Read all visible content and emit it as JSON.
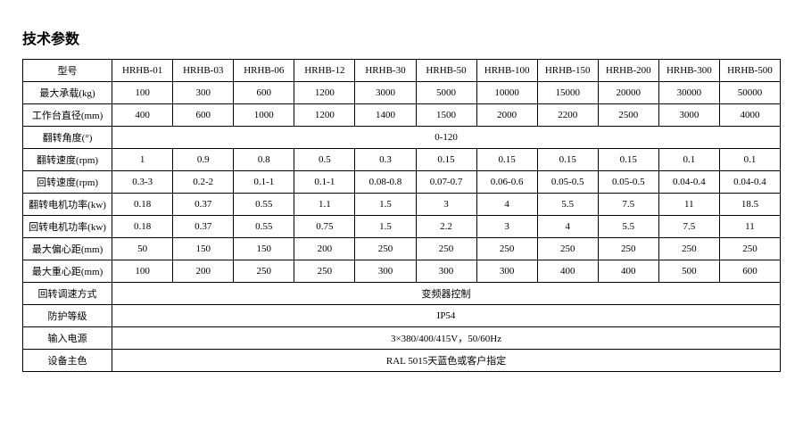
{
  "title": "技术参数",
  "table": {
    "header_label": "型号",
    "models": [
      "HRHB-01",
      "HRHB-03",
      "HRHB-06",
      "HRHB-12",
      "HRHB-30",
      "HRHB-50",
      "HRHB-100",
      "HRHB-150",
      "HRHB-200",
      "HRHB-300",
      "HRHB-500"
    ],
    "rows": [
      {
        "label": "最大承载(kg)",
        "cells": [
          "100",
          "300",
          "600",
          "1200",
          "3000",
          "5000",
          "10000",
          "15000",
          "20000",
          "30000",
          "50000"
        ]
      },
      {
        "label": "工作台直径(mm)",
        "cells": [
          "400",
          "600",
          "1000",
          "1200",
          "1400",
          "1500",
          "2000",
          "2200",
          "2500",
          "3000",
          "4000"
        ]
      },
      {
        "label": "翻转角度(°)",
        "span": "0-120"
      },
      {
        "label": "翻转速度(rpm)",
        "cells": [
          "1",
          "0.9",
          "0.8",
          "0.5",
          "0.3",
          "0.15",
          "0.15",
          "0.15",
          "0.15",
          "0.1",
          "0.1"
        ]
      },
      {
        "label": "回转速度(rpm)",
        "cells": [
          "0.3-3",
          "0.2-2",
          "0.1-1",
          "0.1-1",
          "0.08-0.8",
          "0.07-0.7",
          "0.06-0.6",
          "0.05-0.5",
          "0.05-0.5",
          "0.04-0.4",
          "0.04-0.4"
        ]
      },
      {
        "label": "翻转电机功率(kw)",
        "cells": [
          "0.18",
          "0.37",
          "0.55",
          "1.1",
          "1.5",
          "3",
          "4",
          "5.5",
          "7.5",
          "11",
          "18.5"
        ]
      },
      {
        "label": "回转电机功率(kw)",
        "cells": [
          "0.18",
          "0.37",
          "0.55",
          "0.75",
          "1.5",
          "2.2",
          "3",
          "4",
          "5.5",
          "7.5",
          "11"
        ]
      },
      {
        "label": "最大偏心距(mm)",
        "cells": [
          "50",
          "150",
          "150",
          "200",
          "250",
          "250",
          "250",
          "250",
          "250",
          "250",
          "250"
        ]
      },
      {
        "label": "最大重心距(mm)",
        "cells": [
          "100",
          "200",
          "250",
          "250",
          "300",
          "300",
          "300",
          "400",
          "400",
          "500",
          "600"
        ]
      },
      {
        "label": "回转调速方式",
        "span": "变频器控制"
      },
      {
        "label": "防护等级",
        "span": "IP54"
      },
      {
        "label": "输入电源",
        "span": "3×380/400/415V，50/60Hz"
      },
      {
        "label": "设备主色",
        "span": "RAL 5015天蓝色或客户指定"
      }
    ]
  },
  "style": {
    "background_color": "#ffffff",
    "text_color": "#000000",
    "border_color": "#000000",
    "title_fontsize": 16,
    "cell_fontsize": 11
  }
}
